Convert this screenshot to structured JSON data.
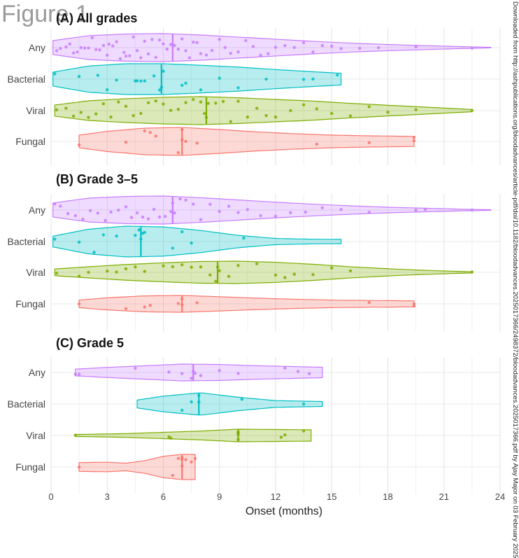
{
  "figure_label": "Figure 1",
  "side_note": "Downloaded from http://ashpublications.org/bloodadvances/article-pdf/doi/10.1182/bloodadvances.2025017366/2498372/bloodadvances.2025017366.pdf by Ajay Major on 03 February 2025",
  "chart_data": {
    "type": "violin",
    "xlabel": "Onset (months)",
    "xlim": [
      0,
      24
    ],
    "xticks": [
      0,
      3,
      6,
      9,
      12,
      15,
      18,
      21,
      24
    ],
    "grid": true,
    "categories": [
      "Any",
      "Bacterial",
      "Viral",
      "Fungal"
    ],
    "colors": {
      "Any": "#c77cff",
      "Bacterial": "#00bfc4",
      "Viral": "#7cae00",
      "Fungal": "#f8766d"
    },
    "panels": [
      {
        "title": "(A) All grades",
        "groups": [
          {
            "name": "Any",
            "min": 0.1,
            "max": 23.5,
            "median": 6.5,
            "profile": [
              [
                0.1,
                0.5
              ],
              [
                2,
                0.85
              ],
              [
                4,
                0.97
              ],
              [
                6,
                1.0
              ],
              [
                8,
                0.9
              ],
              [
                10,
                0.75
              ],
              [
                12,
                0.6
              ],
              [
                14,
                0.45
              ],
              [
                16,
                0.32
              ],
              [
                18,
                0.22
              ],
              [
                20,
                0.14
              ],
              [
                22,
                0.07
              ],
              [
                23.5,
                0.02
              ]
            ],
            "points": [
              0.3,
              0.5,
              0.8,
              1.0,
              1.2,
              1.4,
              1.6,
              1.8,
              2.0,
              2.2,
              2.4,
              2.6,
              2.8,
              3.0,
              3.1,
              3.3,
              3.5,
              3.7,
              3.9,
              4.0,
              4.2,
              4.4,
              4.6,
              4.8,
              5.0,
              5.2,
              5.4,
              5.6,
              5.8,
              6.0,
              6.2,
              6.4,
              6.6,
              6.8,
              7.0,
              7.2,
              7.4,
              7.6,
              7.8,
              8.0,
              8.3,
              8.6,
              9.0,
              9.3,
              9.6,
              10.0,
              10.4,
              10.8,
              11.2,
              11.6,
              12.0,
              12.5,
              13.0,
              13.5,
              14.0,
              14.5,
              15.0,
              15.5,
              16.5,
              17.5,
              19.5,
              22.5
            ]
          },
          {
            "name": "Bacterial",
            "min": 0.1,
            "max": 15.5,
            "median": 5.9,
            "profile": [
              [
                0.1,
                0.45
              ],
              [
                2,
                0.85
              ],
              [
                4,
                1.0
              ],
              [
                6,
                1.0
              ],
              [
                8,
                0.9
              ],
              [
                10,
                0.78
              ],
              [
                12,
                0.62
              ],
              [
                14,
                0.48
              ],
              [
                15.5,
                0.38
              ]
            ],
            "points": [
              0.2,
              1.5,
              2.5,
              3.0,
              3.5,
              4.5,
              4.6,
              4.8,
              5.0,
              5.5,
              5.8,
              5.9,
              6.0,
              7.0,
              7.2,
              8.0,
              9.0,
              10.0,
              11.5,
              13.5,
              14.0,
              15.3
            ]
          },
          {
            "name": "Viral",
            "min": 0.2,
            "max": 22.5,
            "median": 8.3,
            "profile": [
              [
                0.2,
                0.4
              ],
              [
                2,
                0.7
              ],
              [
                4,
                0.85
              ],
              [
                6,
                0.95
              ],
              [
                8,
                1.0
              ],
              [
                10,
                0.92
              ],
              [
                12,
                0.8
              ],
              [
                14,
                0.68
              ],
              [
                16,
                0.52
              ],
              [
                18,
                0.38
              ],
              [
                20,
                0.25
              ],
              [
                22.5,
                0.08
              ]
            ],
            "points": [
              0.3,
              0.8,
              1.2,
              1.6,
              2.0,
              2.4,
              2.8,
              3.2,
              3.6,
              4.0,
              4.4,
              4.8,
              5.2,
              5.6,
              6.0,
              6.4,
              6.8,
              7.2,
              7.6,
              8.0,
              8.2,
              8.3,
              8.4,
              8.8,
              9.2,
              9.6,
              10.0,
              10.5,
              11.0,
              11.5,
              12.0,
              12.8,
              13.5,
              14.2,
              15.0,
              16.0,
              17.0,
              18.0,
              19.5,
              22.5
            ]
          },
          {
            "name": "Fungal",
            "min": 1.5,
            "max": 19.4,
            "median": 7.0,
            "profile": [
              [
                1.5,
                0.45
              ],
              [
                3,
                0.72
              ],
              [
                5,
                0.95
              ],
              [
                7,
                1.0
              ],
              [
                9,
                0.85
              ],
              [
                11,
                0.68
              ],
              [
                13,
                0.55
              ],
              [
                15,
                0.45
              ],
              [
                17,
                0.4
              ],
              [
                19.4,
                0.36
              ]
            ],
            "points": [
              1.5,
              4.0,
              5.0,
              5.3,
              5.6,
              6.8,
              7.0,
              7.0,
              7.2,
              7.8,
              14.2,
              17.0,
              19.4,
              19.4
            ]
          }
        ]
      },
      {
        "title": "(B) Grade 3–5",
        "groups": [
          {
            "name": "Any",
            "min": 0.1,
            "max": 23.5,
            "median": 6.5,
            "profile": [
              [
                0.1,
                0.5
              ],
              [
                2,
                0.85
              ],
              [
                4,
                0.97
              ],
              [
                6,
                1.0
              ],
              [
                8,
                0.88
              ],
              [
                10,
                0.72
              ],
              [
                12,
                0.56
              ],
              [
                14,
                0.42
              ],
              [
                16,
                0.3
              ],
              [
                18,
                0.2
              ],
              [
                20,
                0.13
              ],
              [
                22,
                0.06
              ],
              [
                23.5,
                0.02
              ]
            ],
            "points": [
              0.2,
              0.5,
              0.9,
              1.3,
              1.7,
              2.1,
              2.5,
              2.9,
              3.2,
              3.6,
              4.0,
              4.3,
              4.6,
              4.9,
              5.2,
              5.5,
              5.8,
              6.1,
              6.4,
              6.5,
              6.6,
              6.9,
              7.2,
              7.6,
              8.0,
              8.5,
              9.0,
              9.5,
              10.0,
              10.5,
              11.2,
              12.0,
              12.8,
              13.6,
              14.5,
              15.5,
              17.0,
              19.5,
              20.0,
              22.5
            ]
          },
          {
            "name": "Bacterial",
            "min": 0.1,
            "max": 15.5,
            "median": 4.8,
            "profile": [
              [
                0.1,
                0.35
              ],
              [
                2,
                0.8
              ],
              [
                4,
                1.0
              ],
              [
                6,
                0.95
              ],
              [
                8,
                0.72
              ],
              [
                10,
                0.4
              ],
              [
                12,
                0.2
              ],
              [
                14,
                0.15
              ],
              [
                15.5,
                0.14
              ]
            ],
            "points": [
              0.2,
              1.5,
              2.3,
              2.8,
              3.5,
              4.5,
              4.7,
              4.8,
              4.9,
              5.0,
              6.5,
              7.0,
              7.5,
              10.3
            ]
          },
          {
            "name": "Viral",
            "min": 0.2,
            "max": 22.5,
            "median": 8.9,
            "profile": [
              [
                0.2,
                0.3
              ],
              [
                2,
                0.5
              ],
              [
                4,
                0.7
              ],
              [
                6,
                0.85
              ],
              [
                8,
                0.97
              ],
              [
                10,
                1.0
              ],
              [
                12,
                0.9
              ],
              [
                14,
                0.72
              ],
              [
                16,
                0.5
              ],
              [
                18,
                0.32
              ],
              [
                20,
                0.18
              ],
              [
                22.5,
                0.05
              ]
            ],
            "points": [
              0.3,
              1.5,
              2.0,
              3.0,
              3.5,
              4.0,
              4.5,
              5.0,
              6.0,
              6.5,
              7.0,
              7.5,
              8.0,
              8.5,
              8.8,
              8.9,
              9.0,
              9.5,
              10.0,
              11.0,
              12.0,
              12.5,
              13.0,
              14.0,
              15.0,
              16.0,
              22.5
            ]
          },
          {
            "name": "Fungal",
            "min": 1.5,
            "max": 19.4,
            "median": 7.0,
            "profile": [
              [
                1.5,
                0.45
              ],
              [
                3,
                0.72
              ],
              [
                5,
                0.95
              ],
              [
                7,
                1.0
              ],
              [
                9,
                0.85
              ],
              [
                11,
                0.68
              ],
              [
                13,
                0.55
              ],
              [
                15,
                0.45
              ],
              [
                17,
                0.4
              ],
              [
                19.4,
                0.36
              ]
            ],
            "points": [
              1.5,
              4.0,
              5.0,
              5.3,
              6.8,
              7.0,
              7.0,
              7.8,
              17.0,
              19.4,
              19.4
            ]
          }
        ]
      },
      {
        "title": "(C) Grade 5",
        "groups": [
          {
            "name": "Any",
            "min": 1.3,
            "max": 14.5,
            "median": 7.6,
            "profile": [
              [
                1.3,
                0.4
              ],
              [
                3,
                0.6
              ],
              [
                5,
                0.8
              ],
              [
                7,
                1.0
              ],
              [
                9,
                0.95
              ],
              [
                11,
                0.8
              ],
              [
                13,
                0.7
              ],
              [
                14.5,
                0.62
              ]
            ],
            "points": [
              1.3,
              1.5,
              4.5,
              6.3,
              7.0,
              7.5,
              7.6,
              7.7,
              8.0,
              9.0,
              10.0,
              12.5,
              13.2,
              13.8
            ]
          },
          {
            "name": "Bacterial",
            "min": 4.6,
            "max": 14.5,
            "median": 7.9,
            "profile": [
              [
                4.6,
                0.35
              ],
              [
                6,
                0.7
              ],
              [
                8,
                1.0
              ],
              [
                10,
                0.6
              ],
              [
                12,
                0.3
              ],
              [
                14.5,
                0.22
              ]
            ],
            "points": [
              7.0,
              7.5,
              7.9,
              7.9,
              10.2,
              13.5
            ]
          },
          {
            "name": "Viral",
            "min": 1.3,
            "max": 13.9,
            "median": 10.0,
            "profile": [
              [
                1.3,
                0.15
              ],
              [
                4,
                0.3
              ],
              [
                6,
                0.5
              ],
              [
                8,
                0.7
              ],
              [
                10,
                1.0
              ],
              [
                12,
                0.95
              ],
              [
                13.9,
                0.9
              ]
            ],
            "points": [
              1.3,
              6.3,
              6.4,
              10.0,
              10.0,
              10.0,
              10.0,
              12.3,
              12.5,
              13.5
            ]
          },
          {
            "name": "Fungal",
            "min": 1.5,
            "max": 7.7,
            "median": 7.0,
            "profile": [
              [
                1.5,
                0.35
              ],
              [
                3,
                0.38
              ],
              [
                4,
                0.3
              ],
              [
                5,
                0.5
              ],
              [
                6,
                0.85
              ],
              [
                7,
                1.0
              ],
              [
                7.7,
                1.0
              ]
            ],
            "points": [
              1.5,
              6.5,
              6.8,
              7.0,
              7.0,
              7.0,
              7.2,
              7.5,
              7.7
            ]
          }
        ]
      }
    ]
  }
}
